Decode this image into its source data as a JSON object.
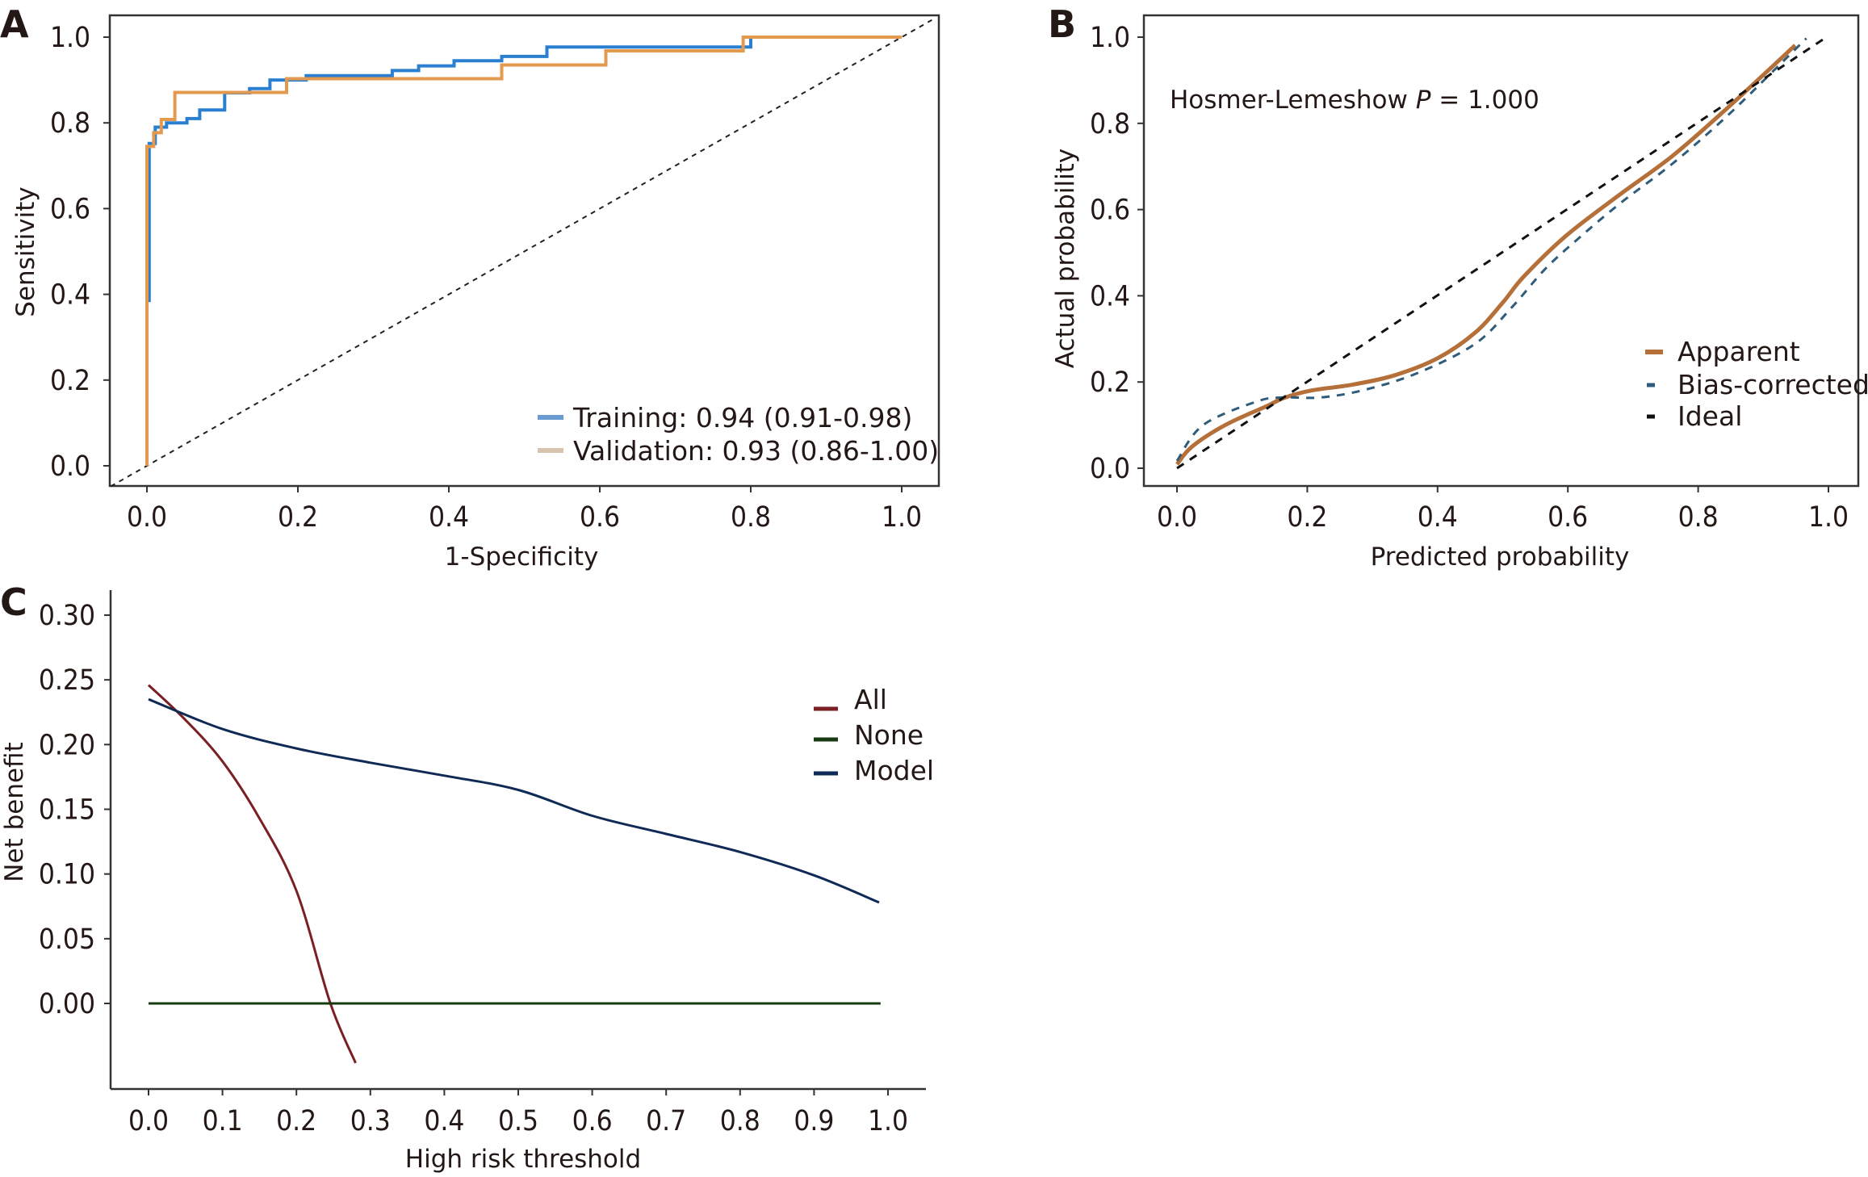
{
  "chart_data": [
    {
      "panel": "A",
      "type": "line",
      "subtype": "roc-step",
      "title": "",
      "xlabel": "1-Specificity",
      "ylabel": "Sensitivity",
      "xlim": [
        -0.05,
        1.05
      ],
      "ylim": [
        -0.05,
        1.05
      ],
      "xticks": [
        "0.0",
        "0.2",
        "0.4",
        "0.6",
        "0.8",
        "1.0"
      ],
      "yticks": [
        "0.0",
        "0.2",
        "0.4",
        "0.6",
        "0.8",
        "1.0"
      ],
      "grid": false,
      "legend_position": "bottom-right",
      "reference_line": {
        "name": "Chance",
        "x": [
          0,
          1
        ],
        "y": [
          0,
          1
        ],
        "style": "dotted",
        "color": "#222222"
      },
      "series": [
        {
          "name": "Training: 0.94 (0.91-0.98)",
          "color": "#2a7fd0",
          "legend_color": "#6a9bd0",
          "x": [
            0.003,
            0.003,
            0.011,
            0.011,
            0.026,
            0.026,
            0.053,
            0.053,
            0.07,
            0.07,
            0.103,
            0.103,
            0.136,
            0.136,
            0.163,
            0.163,
            0.211,
            0.211,
            0.325,
            0.325,
            0.36,
            0.36,
            0.407,
            0.407,
            0.47,
            0.47,
            0.53,
            0.53,
            0.8,
            0.8,
            1.0
          ],
          "y": [
            0.382,
            0.752,
            0.752,
            0.79,
            0.79,
            0.8,
            0.8,
            0.81,
            0.81,
            0.83,
            0.83,
            0.87,
            0.87,
            0.88,
            0.88,
            0.9,
            0.9,
            0.91,
            0.91,
            0.922,
            0.922,
            0.933,
            0.933,
            0.945,
            0.945,
            0.955,
            0.955,
            0.977,
            0.977,
            1.0,
            1.0
          ]
        },
        {
          "name": "Validation: 0.93 (0.86-1.00)",
          "color": "#e39a4e",
          "legend_color": "#d8c4ae",
          "x": [
            0.0,
            0.0,
            0.009,
            0.009,
            0.019,
            0.019,
            0.037,
            0.037,
            0.185,
            0.185,
            0.47,
            0.47,
            0.608,
            0.608,
            0.79,
            0.79,
            1.0
          ],
          "y": [
            0.0,
            0.745,
            0.745,
            0.777,
            0.777,
            0.808,
            0.808,
            0.871,
            0.871,
            0.903,
            0.903,
            0.935,
            0.935,
            0.968,
            0.968,
            1.0,
            1.0
          ]
        }
      ]
    },
    {
      "panel": "B",
      "type": "line",
      "subtype": "calibration",
      "title": "",
      "annotation": {
        "prefix": "Hosmer-Lemeshow ",
        "italic": "P",
        "suffix": " = 1.000"
      },
      "xlabel": "Predicted probability",
      "ylabel": "Actual probability",
      "xlim": [
        -0.05,
        1.05
      ],
      "ylim": [
        -0.04,
        1.05
      ],
      "xticks": [
        "0.0",
        "0.2",
        "0.4",
        "0.6",
        "0.8",
        "1.0"
      ],
      "yticks": [
        "0.0",
        "0.2",
        "0.4",
        "0.6",
        "0.8",
        "1.0"
      ],
      "grid": false,
      "legend_position": "bottom-right",
      "series": [
        {
          "name": "Apparent",
          "color": "#b5703a",
          "style": "solid",
          "x": [
            0.0,
            0.023,
            0.074,
            0.139,
            0.164,
            0.205,
            0.27,
            0.335,
            0.4,
            0.458,
            0.5,
            0.532,
            0.597,
            0.679,
            0.761,
            0.843,
            0.949
          ],
          "y": [
            0.009,
            0.05,
            0.1,
            0.145,
            0.163,
            0.18,
            0.194,
            0.216,
            0.255,
            0.315,
            0.384,
            0.444,
            0.539,
            0.634,
            0.725,
            0.833,
            0.981
          ]
        },
        {
          "name": "Bias-corrected",
          "color": "#2e5c7a",
          "style": "dashed",
          "x": [
            0.0,
            0.04,
            0.123,
            0.164,
            0.22,
            0.286,
            0.368,
            0.458,
            0.515,
            0.565,
            0.614,
            0.679,
            0.761,
            0.843,
            0.925,
            0.966
          ],
          "y": [
            0.017,
            0.1,
            0.155,
            0.164,
            0.164,
            0.181,
            0.22,
            0.289,
            0.375,
            0.462,
            0.53,
            0.613,
            0.707,
            0.815,
            0.936,
            0.997
          ]
        },
        {
          "name": "Ideal",
          "color": "#111111",
          "style": "dashed",
          "x": [
            0.0,
            0.994
          ],
          "y": [
            0.0,
            0.997
          ]
        }
      ]
    },
    {
      "panel": "C",
      "type": "line",
      "subtype": "decision-curve",
      "title": "",
      "xlabel": "High risk threshold",
      "ylabel": "Net benefit",
      "xlim": [
        -0.05,
        1.05
      ],
      "ylim": [
        -0.065,
        0.315
      ],
      "xticks": [
        "0.0",
        "0.1",
        "0.2",
        "0.3",
        "0.4",
        "0.5",
        "0.6",
        "0.7",
        "0.8",
        "0.9",
        "1.0"
      ],
      "yticks": [
        "0.00",
        "0.05",
        "0.10",
        "0.15",
        "0.20",
        "0.25",
        "0.30"
      ],
      "grid": false,
      "legend_position": "top-right",
      "series": [
        {
          "name": "All",
          "color": "#7a1f24",
          "x": [
            0.0,
            0.05,
            0.1,
            0.15,
            0.2,
            0.246,
            0.28
          ],
          "y": [
            0.246,
            0.219,
            0.187,
            0.143,
            0.087,
            0.0,
            -0.046
          ]
        },
        {
          "name": "None",
          "color": "#173a12",
          "x": [
            0.0,
            0.99
          ],
          "y": [
            0.0,
            0.0
          ]
        },
        {
          "name": "Model",
          "color": "#0f2a55",
          "x": [
            0.0,
            0.1,
            0.2,
            0.3,
            0.4,
            0.5,
            0.6,
            0.7,
            0.8,
            0.9,
            0.988
          ],
          "y": [
            0.235,
            0.212,
            0.197,
            0.186,
            0.176,
            0.165,
            0.145,
            0.131,
            0.117,
            0.099,
            0.078
          ]
        }
      ]
    }
  ],
  "panels": {
    "a_letter": "A",
    "b_letter": "B",
    "c_letter": "C"
  }
}
